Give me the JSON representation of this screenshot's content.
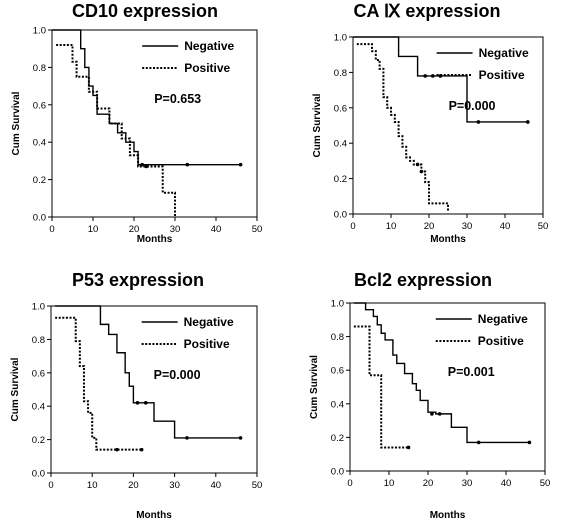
{
  "chart_data": [
    {
      "type": "line",
      "title": "CD10 expression",
      "xlabel": "Months",
      "ylabel": "Cum Survival",
      "xlim": [
        0,
        50
      ],
      "ylim": [
        0,
        1.0
      ],
      "xticks": [
        "0",
        "10",
        "20",
        "30",
        "40",
        "50"
      ],
      "yticks": [
        "0.0",
        "0.2",
        "0.4",
        "0.6",
        "0.8",
        "1.0"
      ],
      "p_value": "P=0.653",
      "legend_position": "top-right",
      "series": [
        {
          "name": "Negative",
          "style": "solid",
          "x": [
            0,
            4,
            7,
            8,
            9,
            10,
            11,
            14,
            16,
            18,
            20,
            21,
            46
          ],
          "y": [
            1.0,
            1.0,
            0.9,
            0.8,
            0.7,
            0.65,
            0.55,
            0.5,
            0.45,
            0.4,
            0.35,
            0.28,
            0.28
          ],
          "censored": [
            [
              22,
              0.28
            ],
            [
              33,
              0.28
            ],
            [
              46,
              0.28
            ]
          ]
        },
        {
          "name": "Positive",
          "style": "dotted",
          "x": [
            1,
            4,
            5,
            6,
            9,
            11,
            14,
            17,
            19,
            21,
            24,
            27,
            30,
            30
          ],
          "y": [
            0.92,
            0.92,
            0.83,
            0.75,
            0.67,
            0.58,
            0.5,
            0.42,
            0.33,
            0.27,
            0.27,
            0.13,
            0.13,
            0.0
          ],
          "censored": [
            [
              23,
              0.27
            ]
          ]
        }
      ]
    },
    {
      "type": "line",
      "title": "CA Ⅸ expression",
      "xlabel": "Months",
      "ylabel": "Cum Survival",
      "xlim": [
        0,
        50
      ],
      "ylim": [
        0,
        1.0
      ],
      "xticks": [
        "0",
        "10",
        "20",
        "30",
        "40",
        "50"
      ],
      "yticks": [
        "0.0",
        "0.2",
        "0.4",
        "0.6",
        "0.8",
        "1.0"
      ],
      "p_value": "P=0.000",
      "legend_position": "top-right",
      "series": [
        {
          "name": "Negative",
          "style": "solid",
          "x": [
            0,
            12,
            17,
            30,
            46
          ],
          "y": [
            1.0,
            0.89,
            0.78,
            0.52,
            0.52
          ],
          "censored": [
            [
              19,
              0.78
            ],
            [
              21,
              0.78
            ],
            [
              23,
              0.78
            ],
            [
              33,
              0.52
            ],
            [
              46,
              0.52
            ]
          ]
        },
        {
          "name": "Positive",
          "style": "dotted",
          "x": [
            1,
            5,
            6,
            7,
            8,
            9,
            10,
            11,
            12,
            13,
            14,
            15,
            16,
            18,
            19,
            20,
            22,
            25
          ],
          "y": [
            0.96,
            0.92,
            0.87,
            0.82,
            0.66,
            0.6,
            0.56,
            0.52,
            0.44,
            0.38,
            0.32,
            0.3,
            0.28,
            0.24,
            0.18,
            0.06,
            0.06,
            0.02
          ],
          "censored": [
            [
              17,
              0.28
            ],
            [
              18,
              0.24
            ]
          ]
        }
      ]
    },
    {
      "type": "line",
      "title": "P53 expression",
      "xlabel": "Months",
      "ylabel": "Cum Survival",
      "xlim": [
        0,
        50
      ],
      "ylim": [
        0,
        1.0
      ],
      "xticks": [
        "0",
        "10",
        "20",
        "30",
        "40",
        "50"
      ],
      "yticks": [
        "0.0",
        "0.2",
        "0.4",
        "0.6",
        "0.8",
        "1.0"
      ],
      "p_value": "P=0.000",
      "legend_position": "top-right",
      "series": [
        {
          "name": "Negative",
          "style": "solid",
          "x": [
            1,
            12,
            14,
            16,
            18,
            19,
            20,
            21,
            25,
            30,
            46
          ],
          "y": [
            1.0,
            0.89,
            0.83,
            0.72,
            0.6,
            0.52,
            0.42,
            0.42,
            0.31,
            0.21,
            0.21
          ],
          "censored": [
            [
              21,
              0.42
            ],
            [
              23,
              0.42
            ],
            [
              33,
              0.21
            ],
            [
              46,
              0.21
            ]
          ]
        },
        {
          "name": "Positive",
          "style": "dotted",
          "x": [
            1,
            5,
            6,
            7,
            8,
            9,
            10,
            11,
            22
          ],
          "y": [
            0.93,
            0.93,
            0.79,
            0.64,
            0.43,
            0.36,
            0.21,
            0.14,
            0.14
          ],
          "censored": [
            [
              16,
              0.14
            ],
            [
              22,
              0.14
            ]
          ]
        }
      ]
    },
    {
      "type": "line",
      "title": "Bcl2 expression",
      "xlabel": "Months",
      "ylabel": "Cum Survival",
      "xlim": [
        0,
        50
      ],
      "ylim": [
        0,
        1.0
      ],
      "xticks": [
        "0",
        "10",
        "20",
        "30",
        "40",
        "50"
      ],
      "yticks": [
        "0.0",
        "0.2",
        "0.4",
        "0.6",
        "0.8",
        "1.0"
      ],
      "p_value": "P=0.001",
      "legend_position": "top-right",
      "series": [
        {
          "name": "Negative",
          "style": "solid",
          "x": [
            1,
            4,
            6,
            7,
            8,
            9,
            11,
            12,
            14,
            16,
            17,
            18,
            20,
            22,
            26,
            30,
            46
          ],
          "y": [
            1.0,
            0.96,
            0.92,
            0.87,
            0.82,
            0.78,
            0.69,
            0.64,
            0.58,
            0.52,
            0.48,
            0.42,
            0.35,
            0.34,
            0.26,
            0.17,
            0.17
          ],
          "censored": [
            [
              21,
              0.34
            ],
            [
              23,
              0.34
            ],
            [
              33,
              0.17
            ],
            [
              46,
              0.17
            ]
          ]
        },
        {
          "name": "Positive",
          "style": "dotted",
          "x": [
            1,
            4,
            5,
            7,
            8,
            15
          ],
          "y": [
            0.86,
            0.86,
            0.57,
            0.57,
            0.14,
            0.14
          ],
          "censored": [
            [
              15,
              0.14
            ]
          ]
        }
      ]
    }
  ]
}
